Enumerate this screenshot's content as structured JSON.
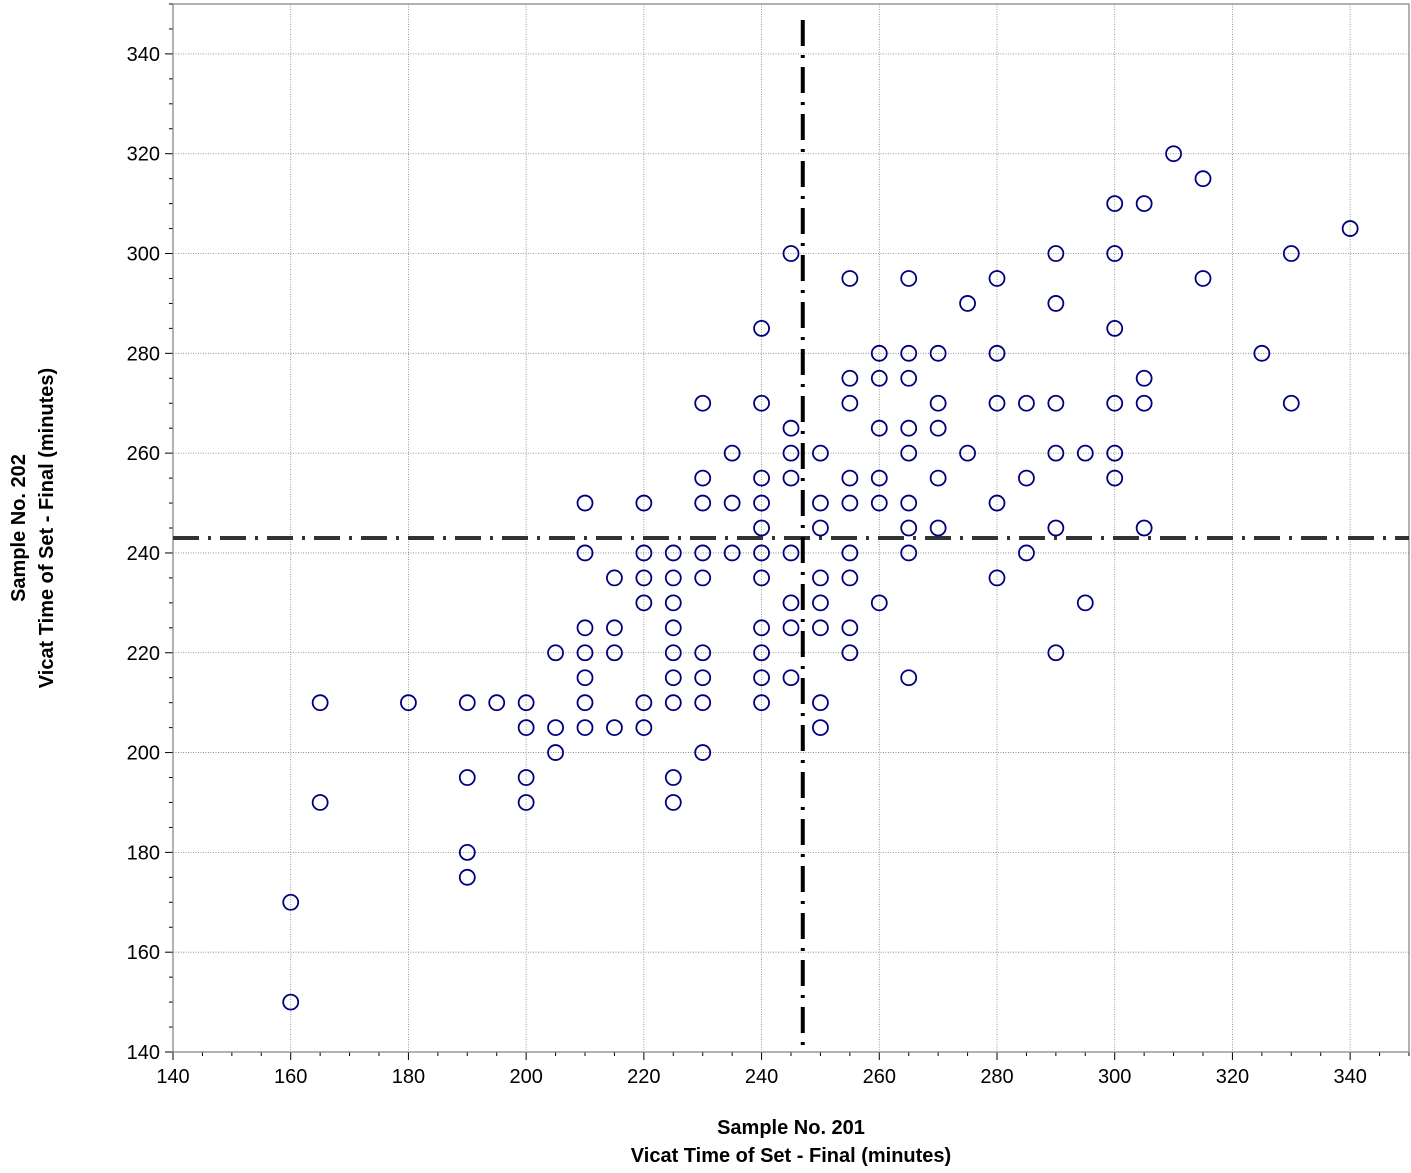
{
  "chart_data": {
    "type": "scatter",
    "title": "",
    "xlabel": [
      "Sample No. 201",
      "Vicat Time of Set  - Final (minutes)"
    ],
    "ylabel": [
      "Sample No. 202",
      "Vicat Time of Set  - Final (minutes)"
    ],
    "xlim": [
      140,
      350
    ],
    "ylim": [
      140,
      350
    ],
    "xticks": [
      140,
      160,
      180,
      200,
      220,
      240,
      260,
      280,
      300,
      320,
      340
    ],
    "yticks": [
      140,
      160,
      180,
      200,
      220,
      240,
      260,
      280,
      300,
      320,
      340
    ],
    "grid": true,
    "point_color": "#00007f",
    "reference_lines": {
      "x_mean": 247,
      "y_mean": 243
    },
    "points": [
      [
        160,
        170
      ],
      [
        160,
        150
      ],
      [
        165,
        210
      ],
      [
        165,
        190
      ],
      [
        180,
        210
      ],
      [
        190,
        210
      ],
      [
        190,
        195
      ],
      [
        190,
        180
      ],
      [
        190,
        175
      ],
      [
        195,
        210
      ],
      [
        200,
        210
      ],
      [
        200,
        205
      ],
      [
        200,
        195
      ],
      [
        200,
        190
      ],
      [
        205,
        220
      ],
      [
        205,
        205
      ],
      [
        205,
        200
      ],
      [
        210,
        250
      ],
      [
        210,
        240
      ],
      [
        210,
        225
      ],
      [
        210,
        220
      ],
      [
        210,
        215
      ],
      [
        210,
        210
      ],
      [
        210,
        205
      ],
      [
        215,
        235
      ],
      [
        215,
        225
      ],
      [
        215,
        220
      ],
      [
        215,
        205
      ],
      [
        220,
        250
      ],
      [
        220,
        240
      ],
      [
        220,
        235
      ],
      [
        220,
        230
      ],
      [
        220,
        210
      ],
      [
        220,
        205
      ],
      [
        225,
        240
      ],
      [
        225,
        235
      ],
      [
        225,
        230
      ],
      [
        225,
        225
      ],
      [
        225,
        220
      ],
      [
        225,
        215
      ],
      [
        225,
        210
      ],
      [
        225,
        195
      ],
      [
        225,
        190
      ],
      [
        230,
        270
      ],
      [
        230,
        255
      ],
      [
        230,
        250
      ],
      [
        230,
        240
      ],
      [
        230,
        235
      ],
      [
        230,
        220
      ],
      [
        230,
        215
      ],
      [
        230,
        210
      ],
      [
        230,
        200
      ],
      [
        235,
        260
      ],
      [
        235,
        250
      ],
      [
        235,
        240
      ],
      [
        240,
        285
      ],
      [
        240,
        270
      ],
      [
        240,
        255
      ],
      [
        240,
        250
      ],
      [
        240,
        245
      ],
      [
        240,
        240
      ],
      [
        240,
        235
      ],
      [
        240,
        225
      ],
      [
        240,
        220
      ],
      [
        240,
        215
      ],
      [
        240,
        210
      ],
      [
        245,
        300
      ],
      [
        245,
        265
      ],
      [
        245,
        260
      ],
      [
        245,
        255
      ],
      [
        245,
        240
      ],
      [
        245,
        230
      ],
      [
        245,
        225
      ],
      [
        245,
        215
      ],
      [
        250,
        260
      ],
      [
        250,
        250
      ],
      [
        250,
        245
      ],
      [
        250,
        235
      ],
      [
        250,
        230
      ],
      [
        250,
        225
      ],
      [
        250,
        210
      ],
      [
        250,
        205
      ],
      [
        255,
        295
      ],
      [
        255,
        275
      ],
      [
        255,
        270
      ],
      [
        255,
        255
      ],
      [
        255,
        250
      ],
      [
        255,
        240
      ],
      [
        255,
        235
      ],
      [
        255,
        225
      ],
      [
        255,
        220
      ],
      [
        260,
        280
      ],
      [
        260,
        275
      ],
      [
        260,
        265
      ],
      [
        260,
        255
      ],
      [
        260,
        250
      ],
      [
        260,
        230
      ],
      [
        265,
        295
      ],
      [
        265,
        280
      ],
      [
        265,
        275
      ],
      [
        265,
        265
      ],
      [
        265,
        260
      ],
      [
        265,
        250
      ],
      [
        265,
        245
      ],
      [
        265,
        240
      ],
      [
        265,
        215
      ],
      [
        270,
        280
      ],
      [
        270,
        270
      ],
      [
        270,
        265
      ],
      [
        270,
        255
      ],
      [
        270,
        245
      ],
      [
        275,
        290
      ],
      [
        275,
        260
      ],
      [
        280,
        295
      ],
      [
        280,
        280
      ],
      [
        280,
        270
      ],
      [
        280,
        250
      ],
      [
        280,
        235
      ],
      [
        285,
        270
      ],
      [
        285,
        255
      ],
      [
        285,
        240
      ],
      [
        290,
        300
      ],
      [
        290,
        290
      ],
      [
        290,
        270
      ],
      [
        290,
        260
      ],
      [
        290,
        245
      ],
      [
        290,
        220
      ],
      [
        295,
        260
      ],
      [
        295,
        230
      ],
      [
        300,
        310
      ],
      [
        300,
        300
      ],
      [
        300,
        285
      ],
      [
        300,
        270
      ],
      [
        300,
        260
      ],
      [
        300,
        255
      ],
      [
        305,
        310
      ],
      [
        305,
        275
      ],
      [
        305,
        270
      ],
      [
        305,
        245
      ],
      [
        310,
        320
      ],
      [
        315,
        315
      ],
      [
        315,
        295
      ],
      [
        325,
        280
      ],
      [
        330,
        300
      ],
      [
        330,
        270
      ],
      [
        340,
        305
      ]
    ]
  }
}
